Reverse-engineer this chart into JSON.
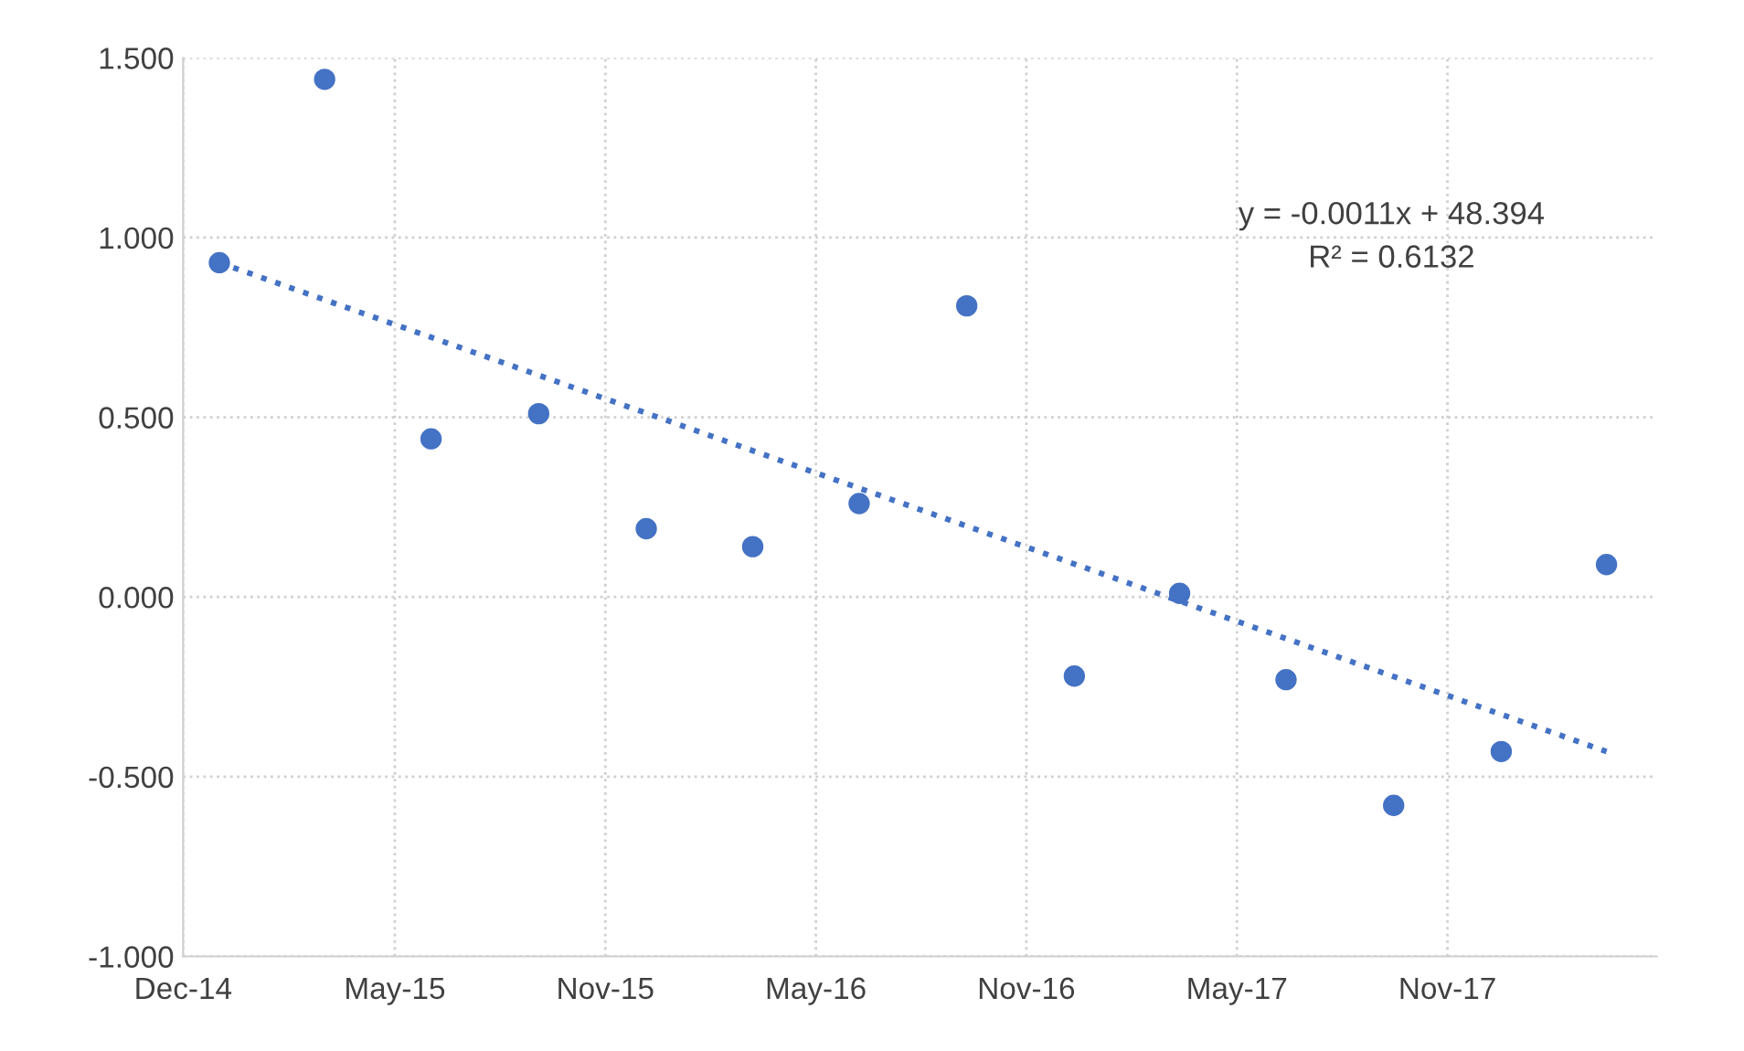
{
  "chart_data": {
    "type": "scatter",
    "x": [
      "2015-01-01",
      "2015-04-01",
      "2015-07-01",
      "2015-10-01",
      "2016-01-01",
      "2016-04-01",
      "2016-07-01",
      "2016-10-01",
      "2017-01-01",
      "2017-04-01",
      "2017-07-01",
      "2017-10-01",
      "2018-01-01",
      "2018-04-01"
    ],
    "series": [
      {
        "color": "#4472c4",
        "marker": "circle",
        "values": [
          0.93,
          1.44,
          0.44,
          0.51,
          0.19,
          0.14,
          0.26,
          0.81,
          -0.22,
          0.01,
          -0.23,
          -0.58,
          -0.43,
          0.09
        ]
      },
      {
        "type": "line",
        "color": "#4472c4",
        "line_style": "dotted",
        "x": [
          "2015-01-01",
          "2018-04-01"
        ],
        "values": [
          0.93,
          -0.43
        ]
      }
    ],
    "xlim": [
      "2014-12-01",
      "2018-05-14"
    ],
    "xticks": [
      {
        "value": "2014-12-01",
        "label": "Dec-14"
      },
      {
        "value": "2015-05-31",
        "label": "May-15"
      },
      {
        "value": "2015-11-27",
        "label": "Nov-15"
      },
      {
        "value": "2016-05-25",
        "label": "May-16"
      },
      {
        "value": "2016-11-21",
        "label": "Nov-16"
      },
      {
        "value": "2017-05-20",
        "label": "May-17"
      },
      {
        "value": "2017-11-16",
        "label": "Nov-17"
      }
    ],
    "ylim": [
      -1.0,
      1.5
    ],
    "yticks": [
      {
        "value": -1.0,
        "label": "-1.000"
      },
      {
        "value": -0.5,
        "label": "-0.500"
      },
      {
        "value": 0.0,
        "label": "0.000"
      },
      {
        "value": 0.5,
        "label": "0.500"
      },
      {
        "value": 1.0,
        "label": "1.000"
      },
      {
        "value": 1.5,
        "label": "1.500"
      }
    ],
    "grid": true,
    "annotations": [
      "y = -0.0011x + 48.394\nR² = 0.6132"
    ]
  }
}
